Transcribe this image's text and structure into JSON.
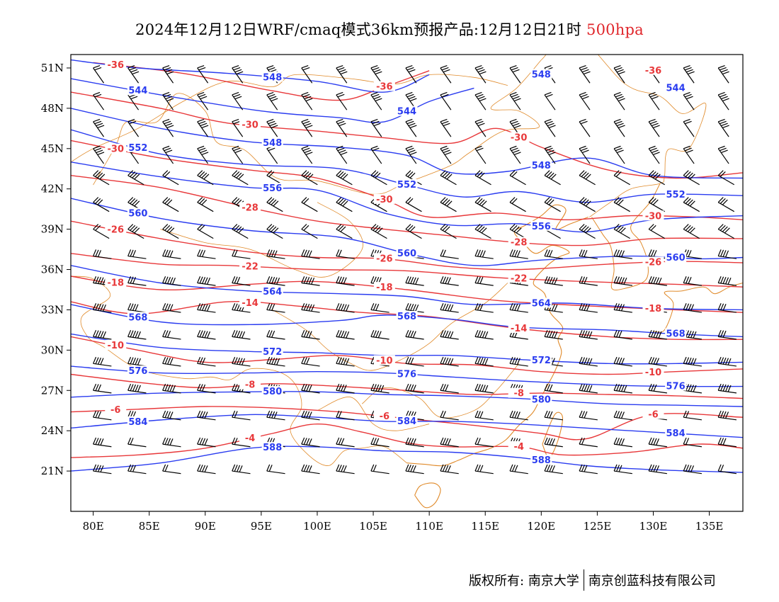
{
  "title": {
    "main": "2024年12月12日WRF/cmaq模式36km预报产品:12月12日21时",
    "level": "500hpa"
  },
  "axes": {
    "x_ticks": [
      "80E",
      "85E",
      "90E",
      "95E",
      "100E",
      "105E",
      "110E",
      "115E",
      "120E",
      "125E",
      "130E",
      "135E"
    ],
    "y_ticks": [
      "51N",
      "48N",
      "45N",
      "42N",
      "39N",
      "36N",
      "33N",
      "30N",
      "27N",
      "24N",
      "21N"
    ]
  },
  "colors": {
    "height_contour": "#2a3cf0",
    "temperature_contour": "#e8383a",
    "boundaries": "#e08a2a",
    "wind_barbs": "#000000"
  },
  "footer": {
    "copyright": "版权所有: 南京大学",
    "company": "南京创蓝科技有限公司"
  },
  "contours": {
    "height": [
      {
        "label": "548",
        "lat": 51.0,
        "points": [
          [
            78,
            51.6
          ],
          [
            84,
            51.0
          ],
          [
            92,
            50.6
          ],
          [
            100,
            50.0
          ],
          [
            106,
            49.2
          ],
          [
            110,
            50.5
          ]
        ]
      },
      {
        "label": "544",
        "lat": 48.0,
        "points": [
          [
            78,
            50.2
          ],
          [
            86,
            49.0
          ],
          [
            95,
            47.8
          ],
          [
            102,
            47.3
          ],
          [
            106,
            47.0
          ],
          [
            110,
            48.5
          ],
          [
            114,
            49.5
          ]
        ]
      },
      {
        "label": "548",
        "lat": 45.0,
        "points": [
          [
            78,
            48.0
          ],
          [
            86,
            46.5
          ],
          [
            94,
            45.5
          ],
          [
            102,
            45.1
          ],
          [
            108,
            44.5
          ],
          [
            112,
            43.2
          ],
          [
            117,
            43.3
          ],
          [
            124,
            44.3
          ],
          [
            130,
            43.0
          ],
          [
            138,
            42.8
          ]
        ]
      },
      {
        "label": "552",
        "lat": 43.5,
        "points": [
          [
            78,
            46.4
          ],
          [
            86,
            44.6
          ],
          [
            94,
            43.8
          ],
          [
            102,
            43.5
          ],
          [
            108,
            42.3
          ],
          [
            113,
            41.4
          ],
          [
            118,
            41.8
          ],
          [
            124,
            41.0
          ],
          [
            130,
            41.6
          ],
          [
            138,
            41.5
          ]
        ]
      },
      {
        "label": "556",
        "lat": 42.0,
        "points": [
          [
            78,
            44.0
          ],
          [
            86,
            42.9
          ],
          [
            94,
            42.1
          ],
          [
            100,
            41.9
          ],
          [
            106,
            40.2
          ],
          [
            112,
            39.3
          ],
          [
            118,
            39.4
          ],
          [
            124,
            38.8
          ],
          [
            130,
            39.7
          ],
          [
            138,
            40.0
          ]
        ]
      },
      {
        "label": "560",
        "lat": 39.0,
        "points": [
          [
            78,
            41.3
          ],
          [
            86,
            39.8
          ],
          [
            94,
            38.9
          ],
          [
            102,
            38.4
          ],
          [
            108,
            37.2
          ],
          [
            114,
            36.3
          ],
          [
            120,
            36.7
          ],
          [
            128,
            37.0
          ],
          [
            134,
            36.8
          ],
          [
            138,
            36.9
          ]
        ]
      },
      {
        "label": "564",
        "lat": 34.4,
        "points": [
          [
            78,
            36.3
          ],
          [
            86,
            35.0
          ],
          [
            94,
            34.4
          ],
          [
            102,
            34.2
          ],
          [
            108,
            34.0
          ],
          [
            114,
            33.4
          ],
          [
            122,
            33.5
          ],
          [
            130,
            33.1
          ],
          [
            138,
            33.0
          ]
        ]
      },
      {
        "label": "568",
        "lat": 32.0,
        "points": [
          [
            78,
            33.4
          ],
          [
            86,
            32.1
          ],
          [
            94,
            31.9
          ],
          [
            102,
            32.2
          ],
          [
            106,
            32.6
          ],
          [
            112,
            32.3
          ],
          [
            118,
            31.7
          ],
          [
            126,
            31.5
          ],
          [
            132,
            31.2
          ],
          [
            138,
            31.0
          ]
        ]
      },
      {
        "label": "572",
        "lat": 30.0,
        "points": [
          [
            78,
            31.2
          ],
          [
            86,
            30.2
          ],
          [
            94,
            29.9
          ],
          [
            100,
            29.8
          ],
          [
            106,
            29.6
          ],
          [
            112,
            29.6
          ],
          [
            118,
            29.3
          ],
          [
            126,
            29.0
          ],
          [
            132,
            29.0
          ],
          [
            138,
            29.1
          ]
        ]
      },
      {
        "label": "576",
        "lat": 28.5,
        "points": [
          [
            78,
            28.8
          ],
          [
            86,
            28.3
          ],
          [
            94,
            28.3
          ],
          [
            100,
            28.4
          ],
          [
            106,
            28.3
          ],
          [
            112,
            28.0
          ],
          [
            118,
            27.7
          ],
          [
            126,
            27.4
          ],
          [
            132,
            27.3
          ],
          [
            138,
            27.3
          ]
        ]
      },
      {
        "label": "580",
        "lat": 26.8,
        "points": [
          [
            78,
            26.5
          ],
          [
            86,
            26.8
          ],
          [
            94,
            26.9
          ],
          [
            100,
            26.9
          ],
          [
            106,
            26.7
          ],
          [
            112,
            26.6
          ],
          [
            118,
            26.4
          ],
          [
            126,
            26.0
          ],
          [
            132,
            25.9
          ],
          [
            138,
            25.8
          ]
        ]
      },
      {
        "label": "584",
        "lat": 25.2,
        "points": [
          [
            78,
            24.2
          ],
          [
            86,
            24.8
          ],
          [
            94,
            25.2
          ],
          [
            100,
            25.0
          ],
          [
            106,
            24.7
          ],
          [
            112,
            24.7
          ],
          [
            118,
            24.5
          ],
          [
            126,
            24.1
          ],
          [
            132,
            23.8
          ],
          [
            138,
            23.5
          ]
        ]
      },
      {
        "label": "588",
        "lat": 22.8,
        "points": [
          [
            78,
            21.0
          ],
          [
            86,
            21.6
          ],
          [
            94,
            22.7
          ],
          [
            100,
            22.8
          ],
          [
            106,
            22.5
          ],
          [
            112,
            22.4
          ],
          [
            118,
            22.0
          ],
          [
            124,
            21.4
          ],
          [
            130,
            21.1
          ],
          [
            138,
            20.9
          ]
        ]
      }
    ],
    "temperature": [
      {
        "label": "-36",
        "lat": 49.5,
        "points": [
          [
            80,
            51.4
          ],
          [
            88,
            50.6
          ],
          [
            96,
            49.3
          ],
          [
            102,
            48.6
          ],
          [
            106,
            49.6
          ],
          [
            110,
            50.8
          ]
        ]
      },
      {
        "label": "-30",
        "lat": 47.5,
        "points": [
          [
            78,
            49.2
          ],
          [
            86,
            48.0
          ],
          [
            92,
            46.9
          ],
          [
            100,
            46.3
          ],
          [
            106,
            45.8
          ],
          [
            112,
            45.4
          ],
          [
            116,
            46.5
          ],
          [
            120,
            45.1
          ],
          [
            126,
            43.4
          ],
          [
            132,
            42.8
          ],
          [
            138,
            43.2
          ]
        ]
      },
      {
        "label": "-30",
        "lat": 43.5,
        "points": [
          [
            78,
            45.6
          ],
          [
            86,
            44.3
          ],
          [
            94,
            43.4
          ],
          [
            100,
            42.8
          ],
          [
            106,
            41.2
          ],
          [
            110,
            39.9
          ],
          [
            116,
            40.2
          ],
          [
            122,
            39.7
          ],
          [
            128,
            40.0
          ],
          [
            134,
            39.9
          ],
          [
            138,
            39.7
          ]
        ]
      },
      {
        "label": "-28",
        "lat": 42.0,
        "points": [
          [
            78,
            43.0
          ],
          [
            86,
            42.1
          ],
          [
            94,
            40.6
          ],
          [
            100,
            39.6
          ],
          [
            106,
            39.0
          ],
          [
            112,
            38.5
          ],
          [
            118,
            38.0
          ],
          [
            124,
            37.8
          ],
          [
            130,
            38.3
          ],
          [
            138,
            38.3
          ]
        ]
      },
      {
        "label": "-26",
        "lat": 37.5,
        "points": [
          [
            78,
            39.6
          ],
          [
            86,
            38.3
          ],
          [
            94,
            37.3
          ],
          [
            100,
            36.9
          ],
          [
            106,
            36.8
          ],
          [
            112,
            36.2
          ],
          [
            118,
            36.0
          ],
          [
            126,
            36.4
          ],
          [
            132,
            36.6
          ],
          [
            138,
            36.5
          ]
        ]
      },
      {
        "label": "-22",
        "lat": 36.5,
        "points": [
          [
            78,
            37.2
          ],
          [
            86,
            36.4
          ],
          [
            92,
            36.3
          ],
          [
            100,
            36.0
          ],
          [
            108,
            35.9
          ],
          [
            116,
            35.4
          ],
          [
            124,
            35.1
          ],
          [
            132,
            34.9
          ],
          [
            138,
            34.7
          ]
        ]
      },
      {
        "label": "-18",
        "lat": 35.2,
        "points": [
          [
            78,
            35.5
          ],
          [
            86,
            34.5
          ],
          [
            94,
            34.9
          ],
          [
            100,
            35.1
          ],
          [
            108,
            34.5
          ],
          [
            116,
            33.7
          ],
          [
            124,
            33.3
          ],
          [
            132,
            33.0
          ],
          [
            138,
            32.8
          ]
        ]
      },
      {
        "label": "-14",
        "lat": 33.8,
        "points": [
          [
            78,
            33.6
          ],
          [
            84,
            32.7
          ],
          [
            92,
            33.6
          ],
          [
            98,
            33.3
          ],
          [
            104,
            32.8
          ],
          [
            110,
            32.5
          ],
          [
            118,
            31.6
          ],
          [
            126,
            31.0
          ],
          [
            132,
            30.8
          ],
          [
            138,
            30.8
          ]
        ]
      },
      {
        "label": "-10",
        "lat": 30.5,
        "points": [
          [
            78,
            31.0
          ],
          [
            84,
            30.0
          ],
          [
            90,
            29.1
          ],
          [
            96,
            29.3
          ],
          [
            102,
            29.6
          ],
          [
            108,
            29.0
          ],
          [
            114,
            28.9
          ],
          [
            120,
            28.4
          ],
          [
            126,
            28.2
          ],
          [
            132,
            28.4
          ],
          [
            138,
            28.6
          ]
        ]
      },
      {
        "label": "-8",
        "lat": 28.0,
        "points": [
          [
            78,
            28.2
          ],
          [
            84,
            27.6
          ],
          [
            90,
            27.2
          ],
          [
            96,
            27.5
          ],
          [
            102,
            27.3
          ],
          [
            108,
            27.0
          ],
          [
            114,
            26.7
          ],
          [
            120,
            26.8
          ],
          [
            126,
            26.7
          ],
          [
            132,
            26.6
          ],
          [
            138,
            26.4
          ]
        ]
      },
      {
        "label": "-6",
        "lat": 25.8,
        "points": [
          [
            78,
            25.4
          ],
          [
            84,
            25.6
          ],
          [
            90,
            25.8
          ],
          [
            96,
            25.7
          ],
          [
            102,
            25.4
          ],
          [
            108,
            24.9
          ],
          [
            114,
            24.4
          ],
          [
            120,
            23.8
          ],
          [
            124,
            23.4
          ],
          [
            130,
            25.2
          ],
          [
            138,
            25.0
          ]
        ]
      },
      {
        "label": "-4",
        "lat": 22.5,
        "points": [
          [
            78,
            22.0
          ],
          [
            84,
            22.2
          ],
          [
            90,
            22.7
          ],
          [
            96,
            23.8
          ],
          [
            100,
            24.5
          ],
          [
            104,
            23.9
          ],
          [
            108,
            23.1
          ],
          [
            112,
            22.8
          ],
          [
            118,
            22.8
          ],
          [
            122,
            22.2
          ],
          [
            128,
            22.4
          ],
          [
            134,
            23.0
          ],
          [
            138,
            22.7
          ]
        ]
      }
    ]
  }
}
